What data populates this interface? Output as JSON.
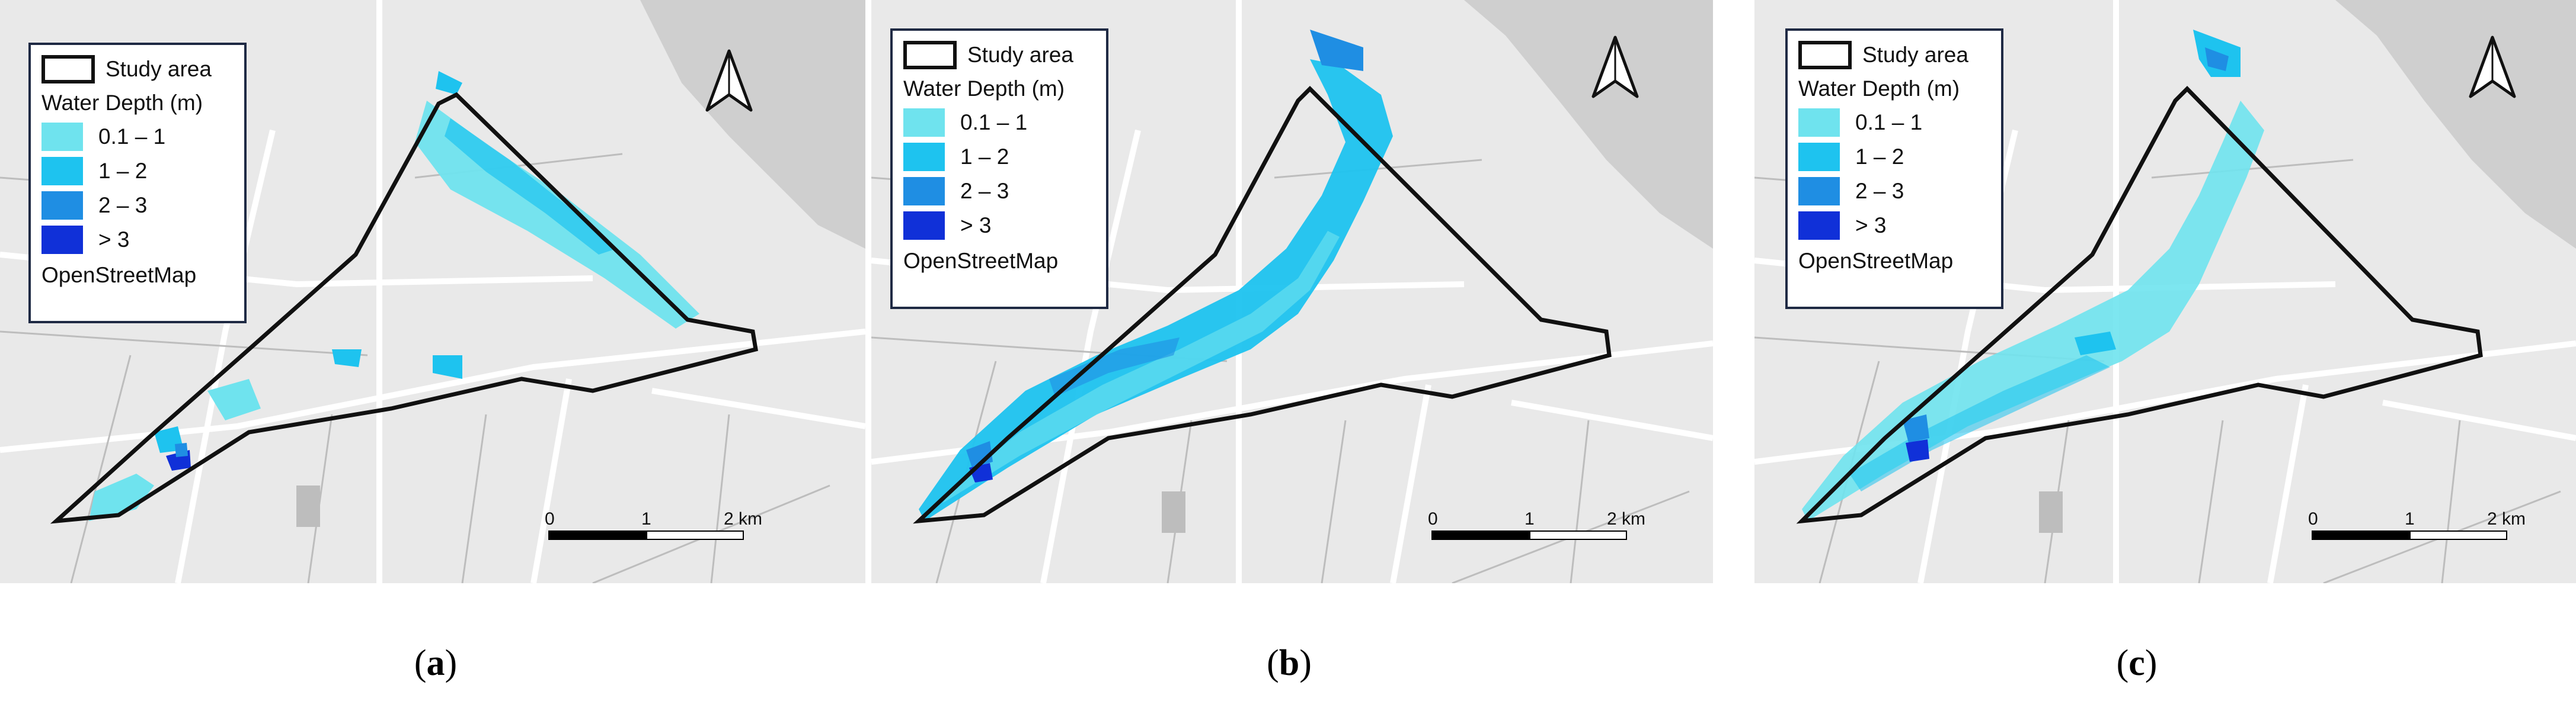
{
  "legend": {
    "study_area_label": "Study area",
    "depth_heading": "Water Depth (m)",
    "classes": [
      {
        "label": "0.1 – 1",
        "color": "#6fe3ee"
      },
      {
        "label": "1 – 2",
        "color": "#1ec3ef"
      },
      {
        "label": "2 – 3",
        "color": "#1f8ee3"
      },
      {
        "label": "> 3",
        "color": "#1030d8"
      }
    ],
    "basemap_label": "OpenStreetMap"
  },
  "scale": {
    "tick0": "0",
    "tick1": "1",
    "tick2": "2 km"
  },
  "colors": {
    "boundary": "#111111",
    "land": "#e9e9e9",
    "sea": "#c8c8c8",
    "roads": "#ffffff"
  },
  "panels": [
    {
      "id": "a",
      "caption_open": "(",
      "caption_letter": "a",
      "caption_close": ")"
    },
    {
      "id": "b",
      "caption_open": "(",
      "caption_letter": "b",
      "caption_close": ")"
    },
    {
      "id": "c",
      "caption_open": "(",
      "caption_letter": "c",
      "caption_close": ")"
    }
  ],
  "icons": {
    "north_arrow": "north-arrow-icon"
  }
}
